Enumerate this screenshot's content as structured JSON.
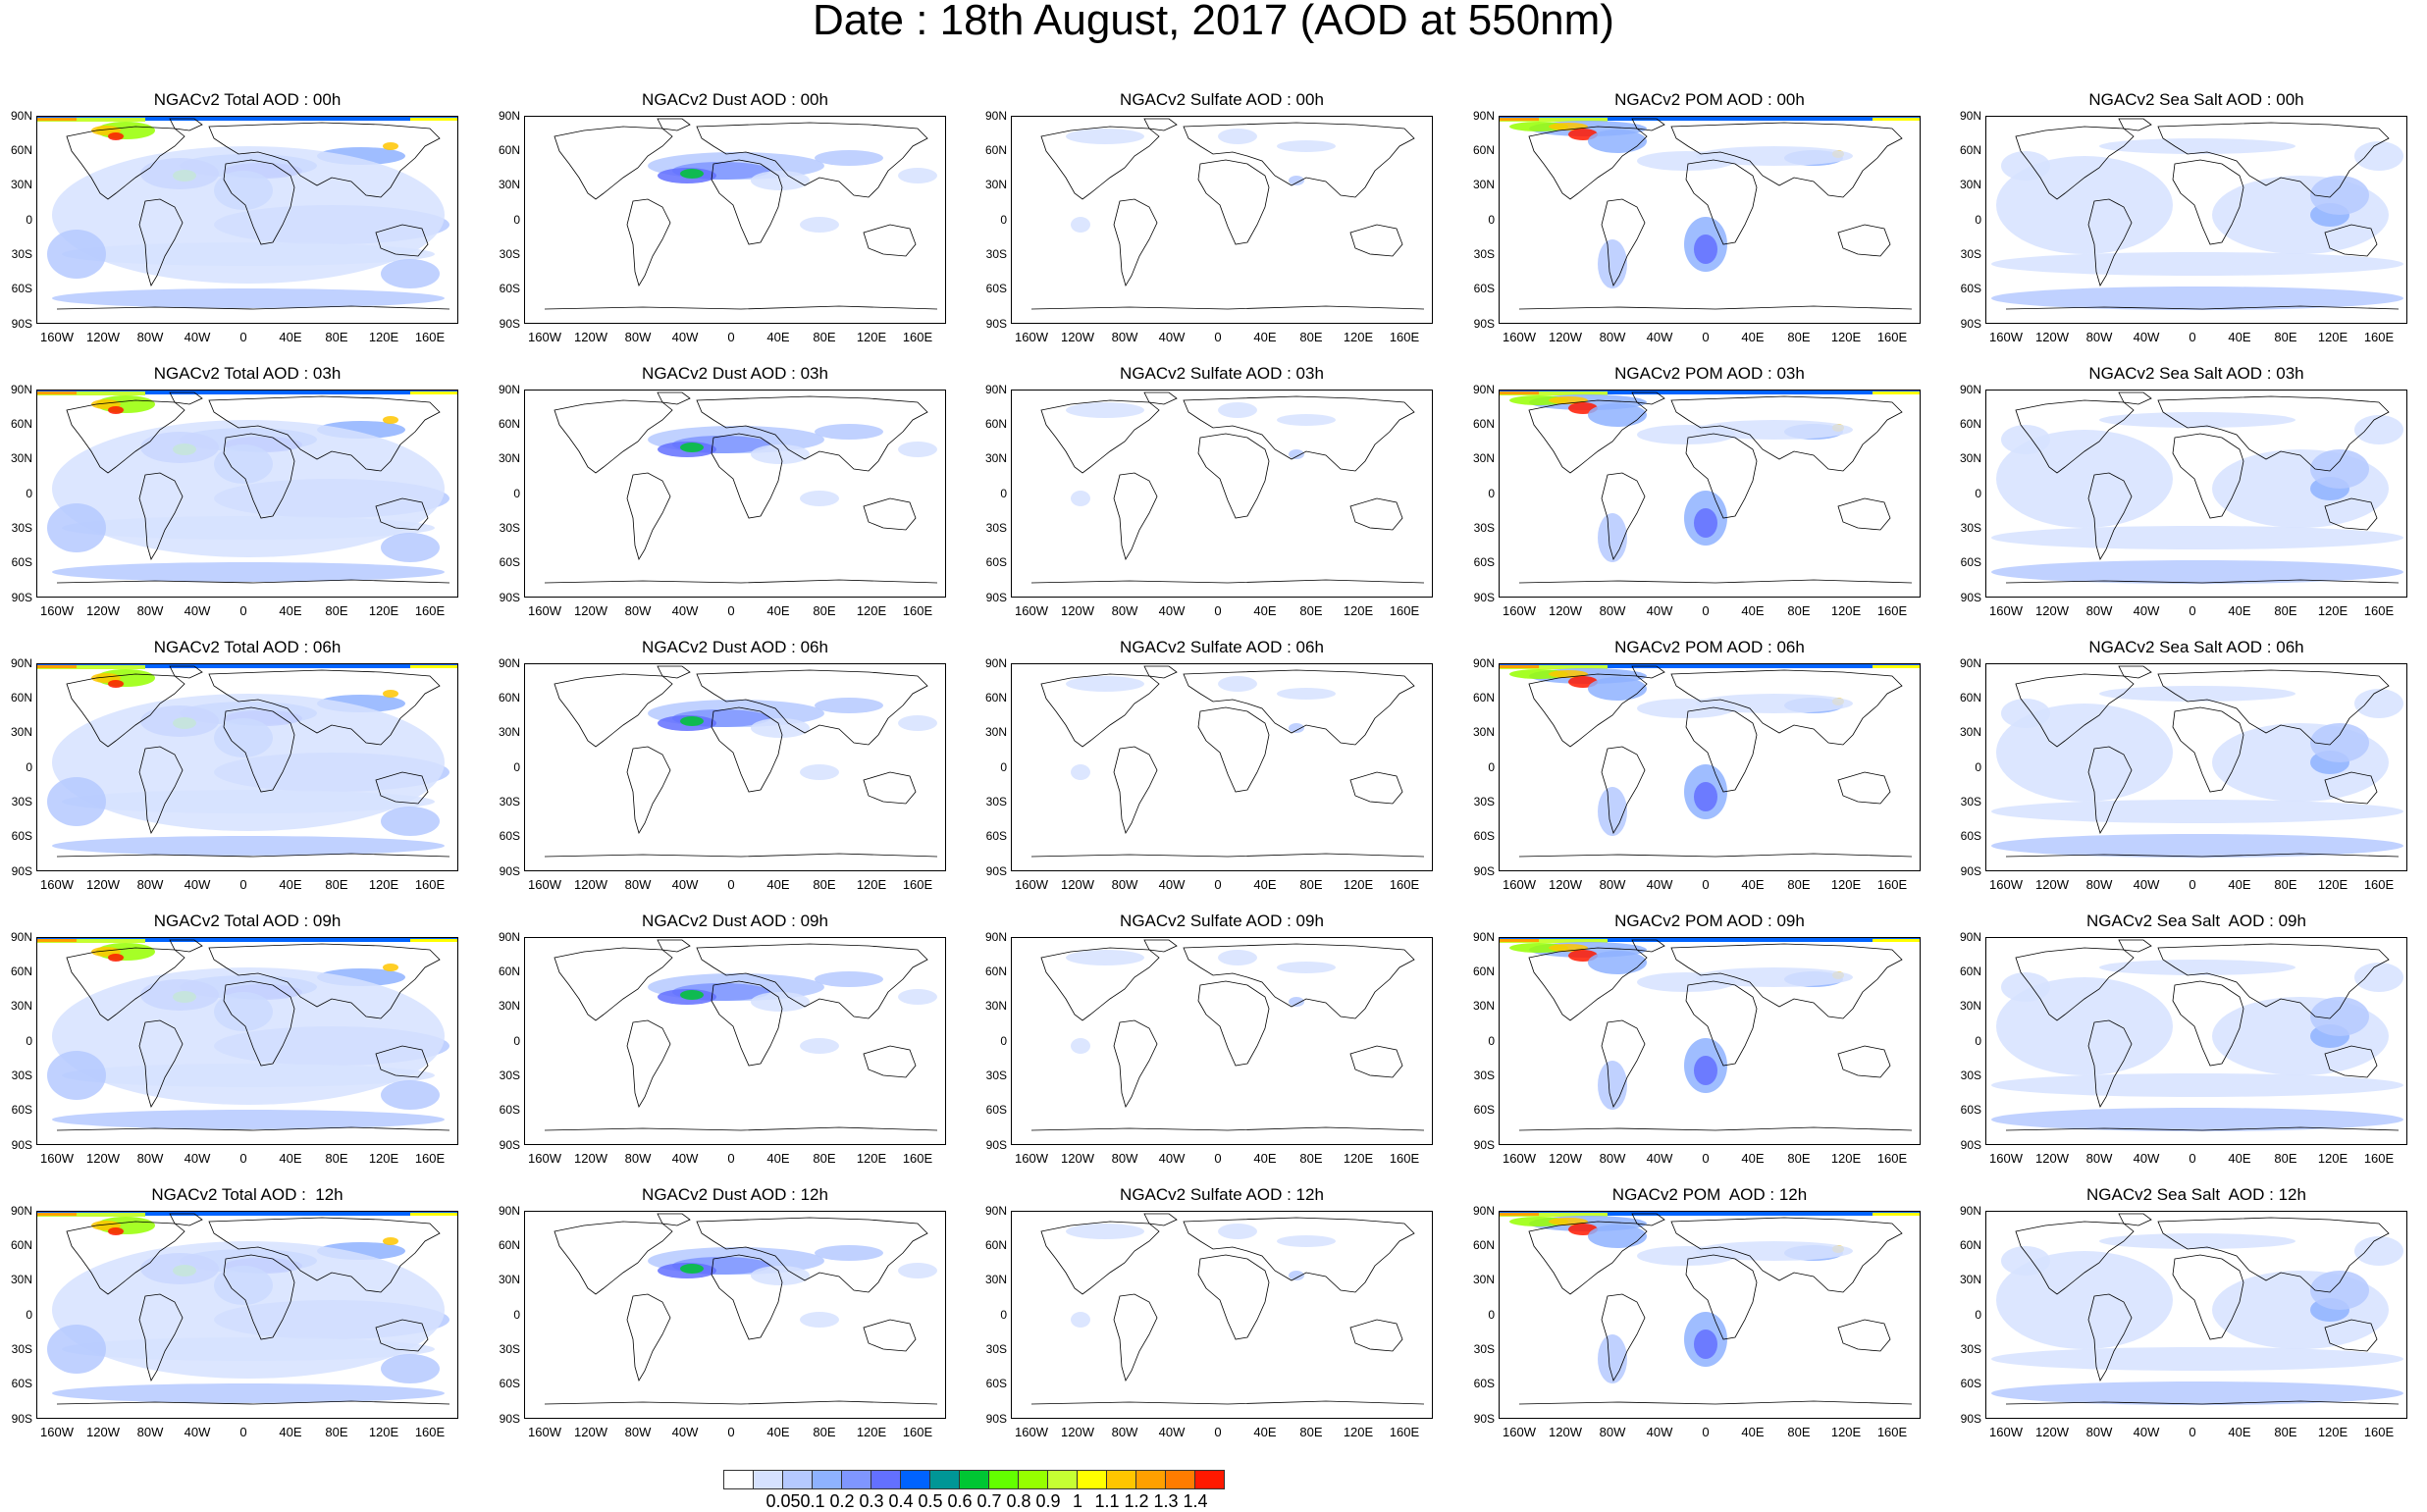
{
  "title": "Date : 18th August, 2017 (AOD at 550nm)",
  "rows": [
    [
      "NGACv2 Total AOD : 00h",
      "NGACv2 Dust AOD : 00h",
      "NGACv2 Sulfate AOD : 00h",
      "NGACv2 POM AOD : 00h",
      "NGACv2 Sea Salt AOD : 00h"
    ],
    [
      "NGACv2 Total AOD : 03h",
      "NGACv2 Dust AOD : 03h",
      "NGACv2 Sulfate AOD : 03h",
      "NGACv2 POM AOD : 03h",
      "NGACv2 Sea Salt AOD : 03h"
    ],
    [
      "NGACv2 Total AOD : 06h",
      "NGACv2 Dust AOD : 06h",
      "NGACv2 Sulfate AOD : 06h",
      "NGACv2 POM AOD : 06h",
      "NGACv2 Sea Salt AOD : 06h"
    ],
    [
      "NGACv2 Total AOD : 09h",
      "NGACv2 Dust AOD : 09h",
      "NGACv2 Sulfate AOD : 09h",
      "NGACv2 POM AOD : 09h",
      "NGACv2 Sea Salt  AOD : 09h"
    ],
    [
      "NGACv2 Total AOD :  12h",
      "NGACv2 Dust AOD : 12h",
      "NGACv2 Sulfate AOD : 12h",
      "NGACv2 POM  AOD : 12h",
      "NGACv2 Sea Salt  AOD : 12h"
    ]
  ],
  "lat_labels": [
    "90N",
    "60N",
    "30N",
    "0",
    "30S",
    "60S",
    "90S"
  ],
  "lon_labels": [
    "160W",
    "120W",
    "80W",
    "40W",
    "0",
    "40E",
    "80E",
    "120E",
    "160E"
  ],
  "colorbar": {
    "colors": [
      "#ffffff",
      "#d6e2ff",
      "#b5c9ff",
      "#8eb2ff",
      "#7f96ff",
      "#6370ff",
      "#0063ff",
      "#009696",
      "#00c633",
      "#63ff00",
      "#96ff00",
      "#c6ff33",
      "#ffff00",
      "#ffc600",
      "#ffa000",
      "#ff7c00",
      "#ff1900"
    ],
    "labels": [
      "0.05",
      "0.1",
      "0.2",
      "0.3",
      "0.4",
      "0.5",
      "0.6",
      "0.7",
      "0.8",
      "0.9",
      "1",
      "1.1",
      "1.2",
      "1.3",
      "1.4"
    ]
  },
  "panel_types": [
    "total",
    "dust",
    "sulfate",
    "pom",
    "seasalt"
  ]
}
